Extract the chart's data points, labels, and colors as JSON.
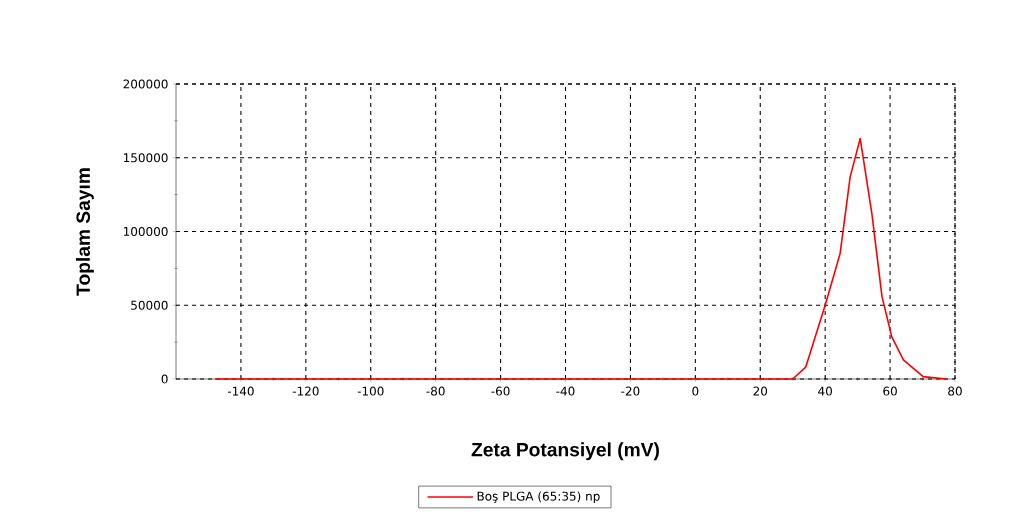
{
  "chart_data": {
    "type": "line",
    "xlabel": "Zeta Potansiyel (mV)",
    "ylabel": "Toplam Sayım",
    "series": [
      {
        "name": "Boş PLGA (65:35) np",
        "color": "#ff0000",
        "x": [
          -148,
          30,
          34,
          40,
          44.6,
          47.7,
          50.8,
          54.4,
          57.5,
          60.5,
          64.1,
          70.2,
          77.4
        ],
        "values": [
          0,
          0,
          8000,
          50000,
          85000,
          137000,
          163000,
          112000,
          56000,
          28700,
          12900,
          1600,
          0
        ]
      }
    ],
    "xlim": [
      -160,
      80
    ],
    "ylim": [
      0,
      200000
    ],
    "xticks": [
      -140,
      -120,
      -100,
      -80,
      -60,
      -40,
      -20,
      0,
      20,
      40,
      60,
      80
    ],
    "yticks": [
      0,
      50000,
      100000,
      150000,
      200000
    ],
    "grid": true,
    "legend": "bottom",
    "marker": "none",
    "line_style": "solid"
  }
}
